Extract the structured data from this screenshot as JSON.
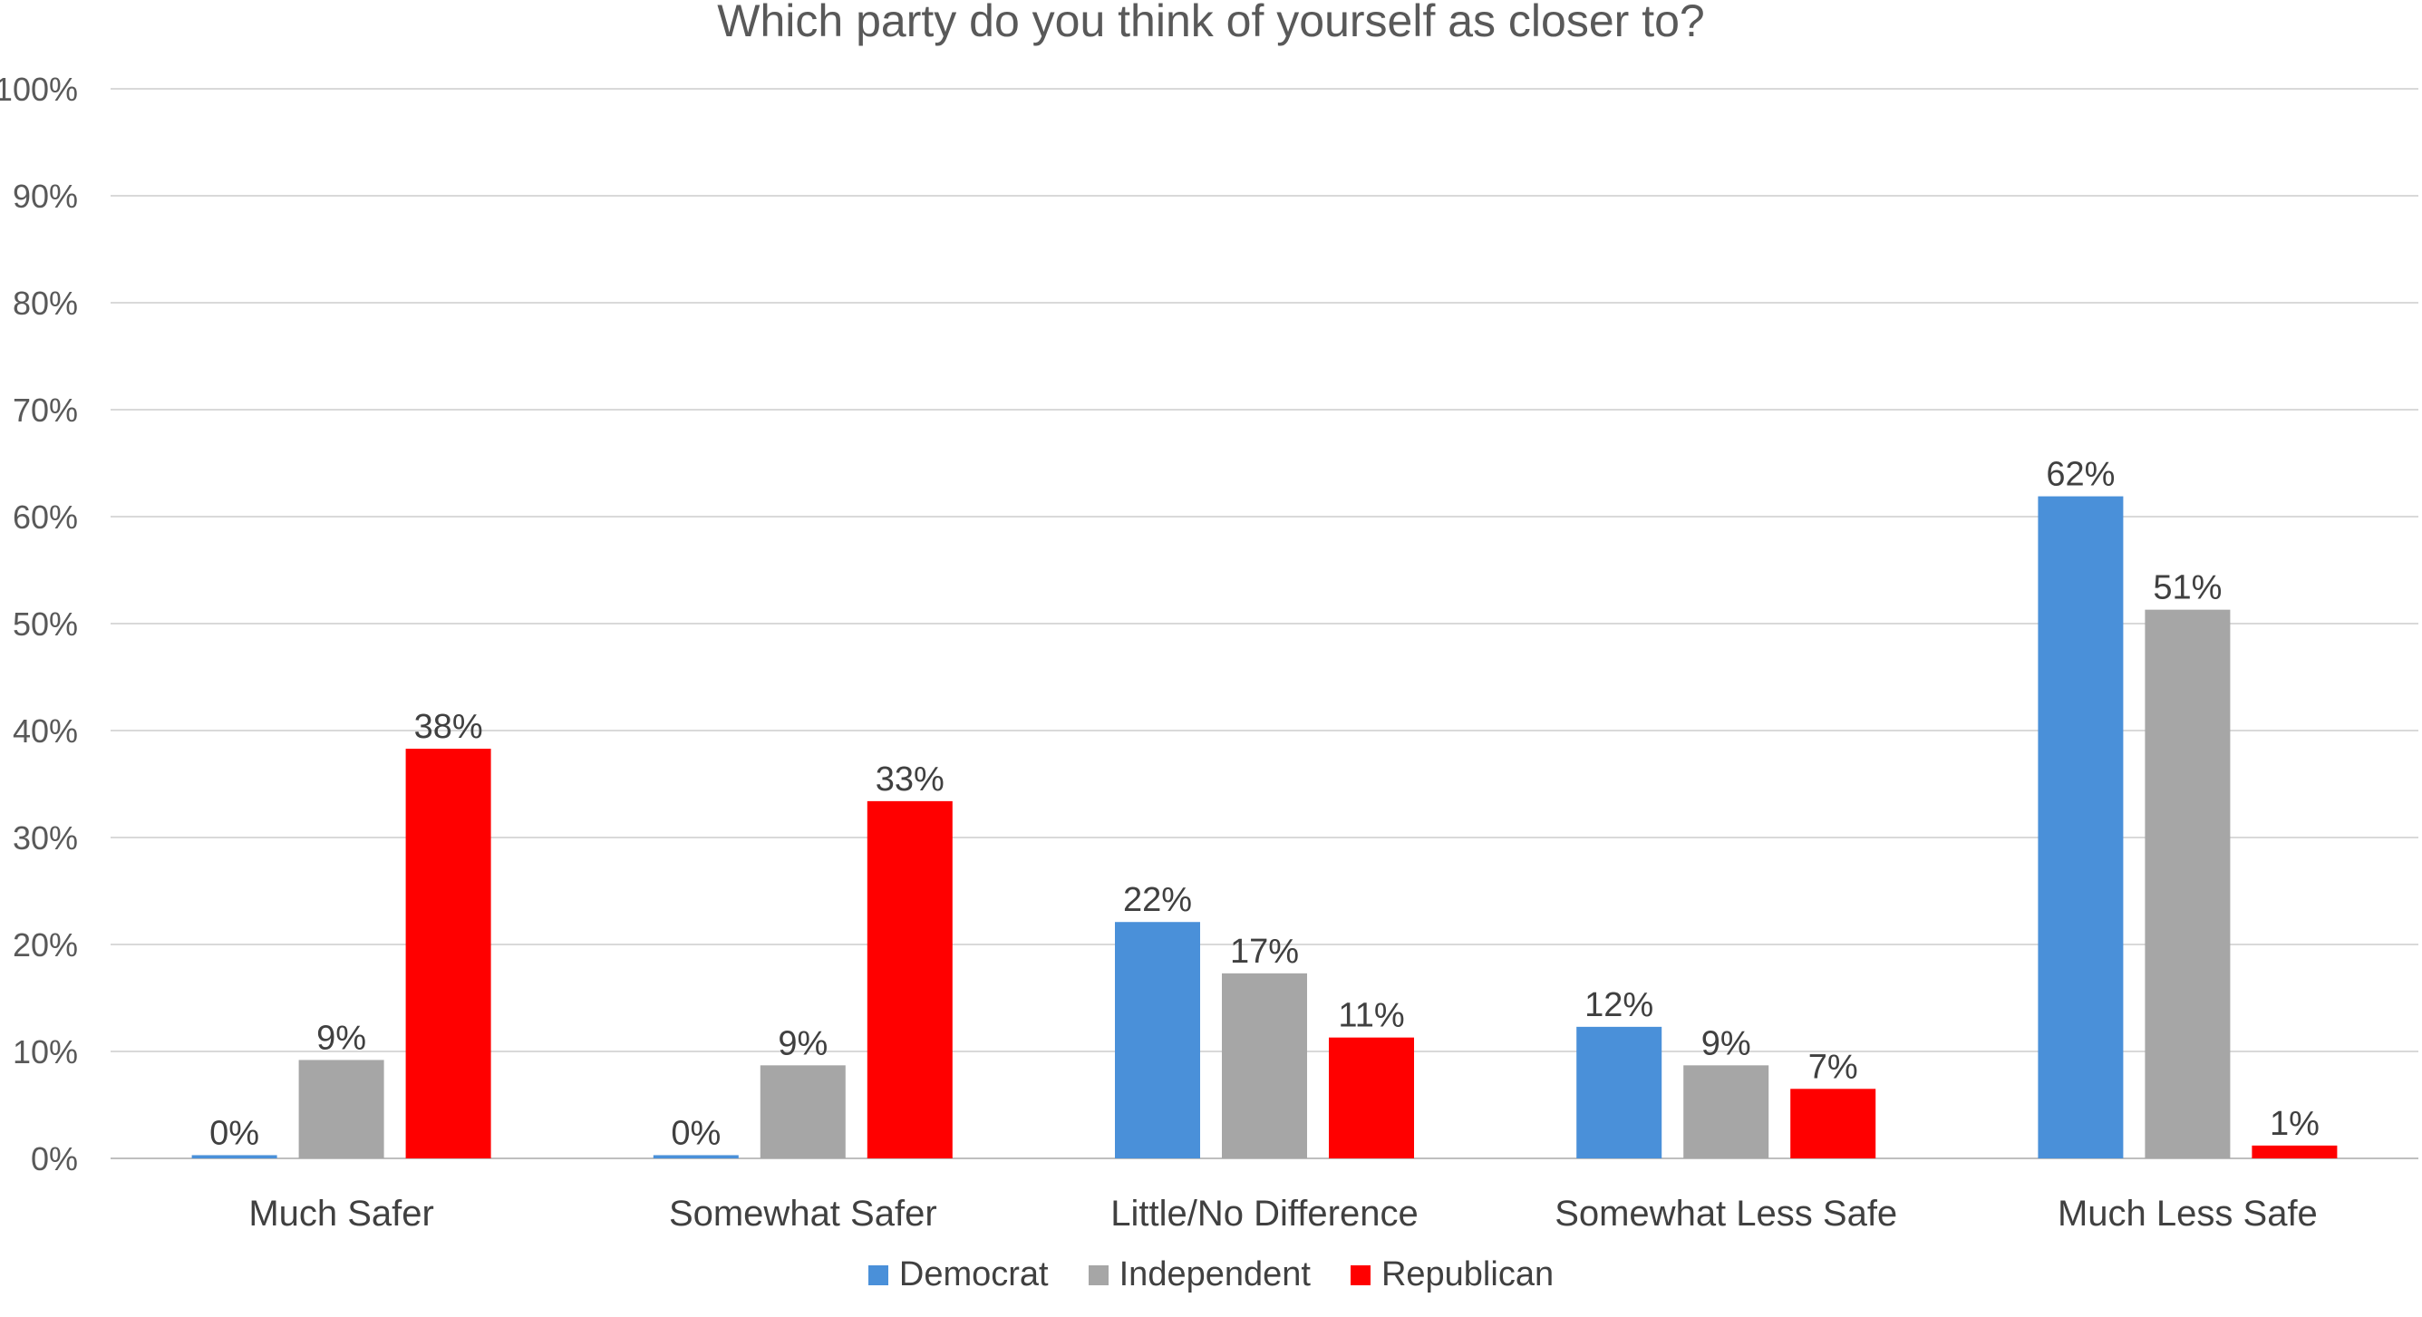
{
  "chart_data": {
    "type": "bar",
    "title": "Which party do you think of yourself as closer to?",
    "xlabel": "",
    "ylabel": "",
    "ylim": [
      0,
      100
    ],
    "yticks": [
      "0%",
      "10%",
      "20%",
      "30%",
      "40%",
      "50%",
      "60%",
      "70%",
      "80%",
      "90%",
      "100%"
    ],
    "grid": true,
    "legend_position": "bottom",
    "categories": [
      "Much Safer",
      "Somewhat Safer",
      "Little/No Difference",
      "Somewhat Less Safe",
      "Much Less Safe"
    ],
    "series": [
      {
        "name": "Democrat",
        "color": "#4a90d9",
        "values": [
          0.3,
          0.3,
          22.1,
          12.3,
          61.9
        ],
        "labels": [
          "0%",
          "0%",
          "22%",
          "12%",
          "62%"
        ]
      },
      {
        "name": "Independent",
        "color": "#a6a6a6",
        "values": [
          9.2,
          8.7,
          17.3,
          8.7,
          51.3
        ],
        "labels": [
          "9%",
          "9%",
          "17%",
          "9%",
          "51%"
        ]
      },
      {
        "name": "Republican",
        "color": "#ff0000",
        "values": [
          38.3,
          33.4,
          11.3,
          6.5,
          1.2
        ],
        "labels": [
          "38%",
          "33%",
          "11%",
          "7%",
          "1%"
        ]
      }
    ]
  }
}
